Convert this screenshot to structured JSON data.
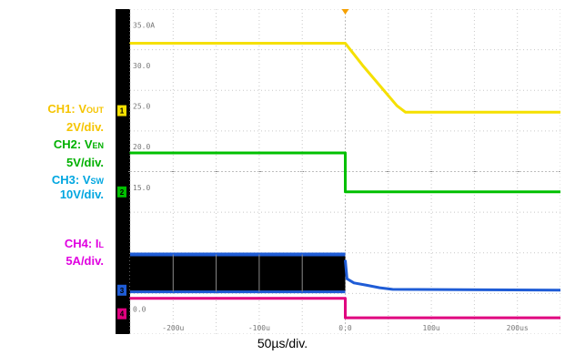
{
  "legend": [
    {
      "channel": "CH1",
      "signal": "V",
      "sub": "OUT",
      "scale": "2V/div.",
      "color": "#f5c400"
    },
    {
      "channel": "CH2",
      "signal": "V",
      "sub": "EN",
      "scale": "5V/div.",
      "color": "#00b000"
    },
    {
      "channel": "CH3",
      "signal": "V",
      "sub": "SW",
      "scale": "10V/div.",
      "color": "#00a6e0"
    },
    {
      "channel": "CH4",
      "signal": "I",
      "sub": "L",
      "scale": "5A/div.",
      "color": "#e000e0"
    }
  ],
  "x_unit_label": "50µs/div.",
  "chart_data": {
    "type": "line",
    "title": "",
    "xlabel": "50µs/div.",
    "ylabel": "",
    "xlim": [
      -250,
      250
    ],
    "ylim": [
      -2.5,
      37.5
    ],
    "grid": true,
    "x_ticks": [
      {
        "value": -200,
        "label": "-200u"
      },
      {
        "value": -100,
        "label": "-100u"
      },
      {
        "value": 0,
        "label": "0.0"
      },
      {
        "value": 100,
        "label": "100u"
      },
      {
        "value": 200,
        "label": "200us"
      }
    ],
    "y_ticks": [
      {
        "value": 35,
        "label": "35.0A"
      },
      {
        "value": 30,
        "label": "30.0"
      },
      {
        "value": 25,
        "label": "25.0"
      },
      {
        "value": 20,
        "label": "20.0"
      },
      {
        "value": 15,
        "label": "15.0"
      },
      {
        "value": 0,
        "label": "0.0"
      }
    ],
    "series": [
      {
        "name": "CH1: VOUT",
        "color": "#f5e000",
        "x": [
          -250,
          0,
          20,
          40,
          60,
          70,
          80,
          250
        ],
        "y": [
          33.3,
          33.3,
          30.6,
          28.1,
          25.6,
          24.8,
          24.8,
          24.8
        ]
      },
      {
        "name": "CH2: VEN",
        "color": "#00c000",
        "x": [
          -250,
          0,
          0,
          250
        ],
        "y": [
          19.8,
          19.8,
          15.0,
          15.0
        ]
      },
      {
        "name": "CH3: VSW",
        "color": "#1f5cd6",
        "band": [
          2.7,
          7.3
        ],
        "band_until": 0,
        "x": [
          0,
          2,
          10,
          25,
          40,
          55,
          250
        ],
        "y": [
          6.6,
          4.3,
          3.8,
          3.5,
          3.2,
          3.0,
          2.9
        ]
      },
      {
        "name": "CH4: IL",
        "color": "#e0007f",
        "x": [
          -250,
          0,
          0,
          250
        ],
        "y": [
          1.9,
          1.9,
          -0.5,
          -0.5
        ]
      }
    ],
    "markers": [
      {
        "label": "1",
        "value": 25.0,
        "color": "#f5e000"
      },
      {
        "label": "2",
        "value": 15.0,
        "color": "#00c000"
      },
      {
        "label": "3",
        "value": 2.9,
        "color": "#1f5cd6"
      },
      {
        "label": "4",
        "value": 0.0,
        "color": "#e0007f"
      }
    ]
  }
}
